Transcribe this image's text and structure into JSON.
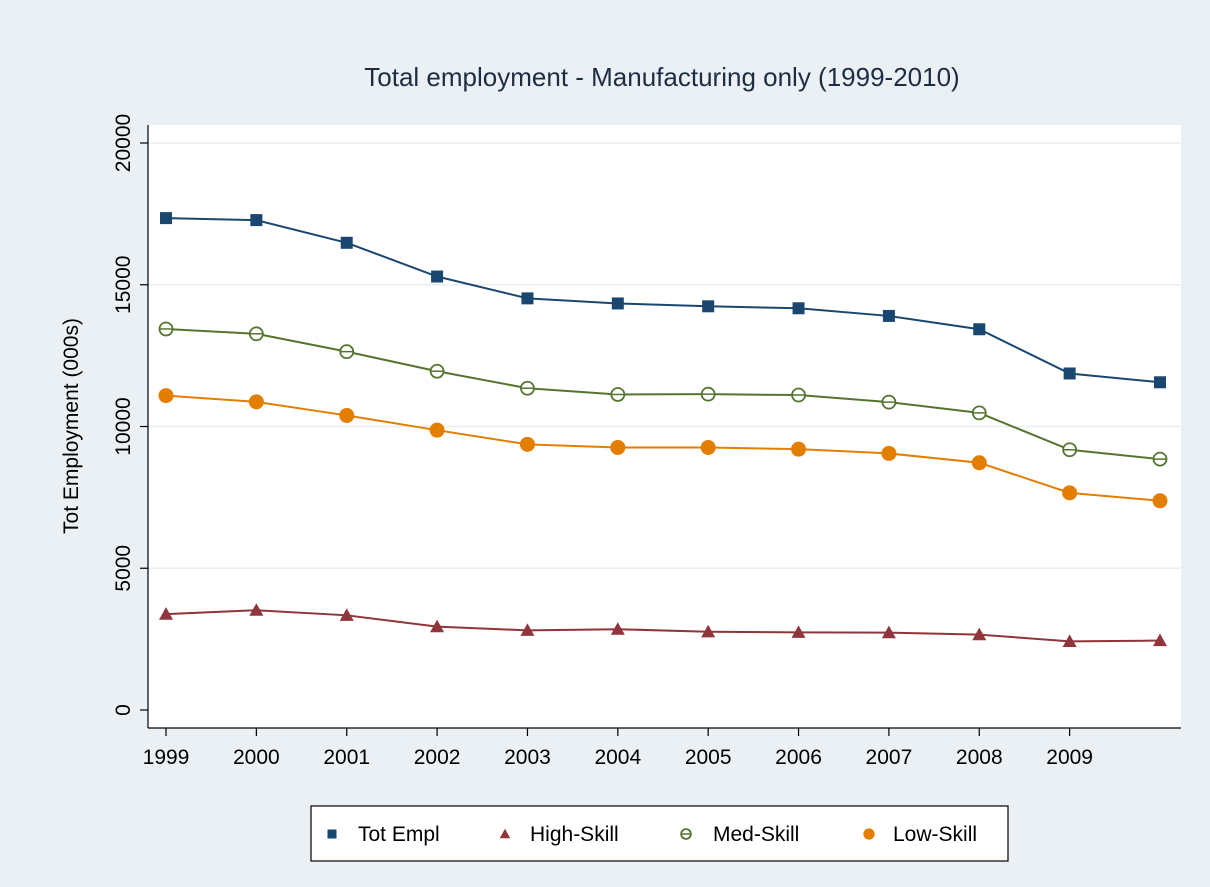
{
  "chart_data": {
    "type": "line",
    "title": "Total employment - Manufacturing only (1999-2010)",
    "xlabel": "",
    "ylabel": "Tot Employment (000s)",
    "x": [
      1999,
      2000,
      2001,
      2002,
      2003,
      2004,
      2005,
      2006,
      2007,
      2008,
      2009,
      2010
    ],
    "x_ticks": [
      1999,
      2000,
      2001,
      2002,
      2003,
      2004,
      2005,
      2006,
      2007,
      2008,
      2009
    ],
    "xlim": [
      1999,
      2010
    ],
    "ylim": [
      0,
      20000
    ],
    "y_ticks": [
      0,
      5000,
      10000,
      15000,
      20000
    ],
    "grid": true,
    "legend_position": "bottom",
    "series": [
      {
        "name": "Tot Empl",
        "color": "#1a476f",
        "marker": "square",
        "values": [
          17350,
          17280,
          16480,
          15290,
          14520,
          14340,
          14240,
          14170,
          13900,
          13430,
          11870,
          11560
        ]
      },
      {
        "name": "High-Skill",
        "color": "#90353b",
        "marker": "triangle",
        "values": [
          3380,
          3520,
          3340,
          2940,
          2810,
          2850,
          2760,
          2740,
          2730,
          2660,
          2420,
          2450
        ]
      },
      {
        "name": "Med-Skill",
        "color": "#55752f",
        "marker": "hollow-circle",
        "values": [
          13440,
          13270,
          12640,
          11950,
          11350,
          11130,
          11140,
          11110,
          10860,
          10480,
          9180,
          8850
        ]
      },
      {
        "name": "Low-Skill",
        "color": "#e37e00",
        "marker": "circle",
        "values": [
          11090,
          10870,
          10390,
          9870,
          9370,
          9260,
          9260,
          9200,
          9050,
          8720,
          7660,
          7380
        ]
      }
    ]
  },
  "colors": {
    "page_background": "#eaf0f4",
    "plot_background": "#ffffff",
    "grid": "#e8eef2",
    "axis": "#000000",
    "title_text": "#1e2d44"
  }
}
